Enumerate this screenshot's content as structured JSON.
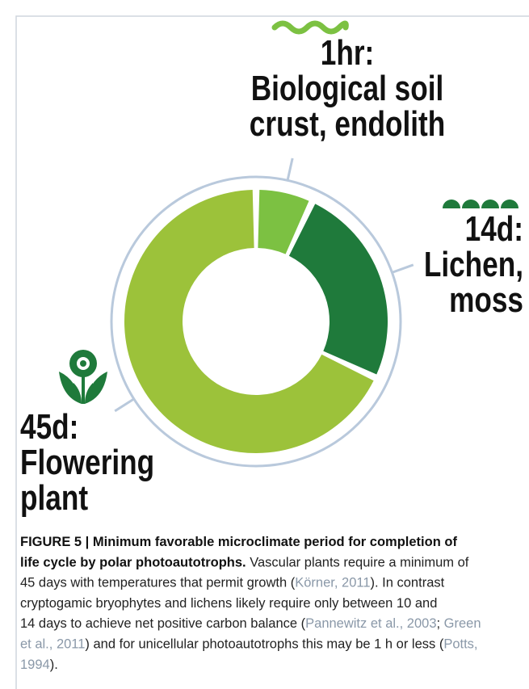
{
  "chart_data": {
    "type": "donut",
    "values": [
      7,
      25,
      68
    ],
    "colors": [
      "#7cc142",
      "#1f7a3b",
      "#9cc23a"
    ],
    "ring_color": "#b9c9dc",
    "labels": [
      {
        "period": "1hr:",
        "lines": [
          "Biological soil",
          "crust, endolith"
        ]
      },
      {
        "period": "14d:",
        "lines": [
          "Lichen,",
          "moss"
        ]
      },
      {
        "period": "45d:",
        "lines": [
          "Flowering",
          "plant"
        ]
      }
    ]
  },
  "caption": [
    [
      {
        "text": "FIGURE 5 | Minimum favorable microclimate period for completion of",
        "style": "bold"
      }
    ],
    [
      {
        "text": "life cycle by polar photoautotrophs.",
        "style": "bold"
      },
      {
        "text": " Vascular plants require a minimum of",
        "style": "normal"
      }
    ],
    [
      {
        "text": "45 days with temperatures that permit growth (",
        "style": "normal"
      },
      {
        "text": "Körner, 2011",
        "style": "cite"
      },
      {
        "text": "). In contrast",
        "style": "normal"
      }
    ],
    [
      {
        "text": "cryptogamic bryophytes and lichens likely require only between 10 and",
        "style": "normal"
      }
    ],
    [
      {
        "text": "14 days to achieve net positive carbon balance (",
        "style": "normal"
      },
      {
        "text": "Pannewitz et al., 2003",
        "style": "cite"
      },
      {
        "text": "; ",
        "style": "normal"
      },
      {
        "text": "Green",
        "style": "cite"
      }
    ],
    [
      {
        "text": "et al., 2011",
        "style": "cite"
      },
      {
        "text": ") and for unicellular photoautotrophs this may be 1 h or less (",
        "style": "normal"
      },
      {
        "text": "Potts,",
        "style": "cite"
      }
    ],
    [
      {
        "text": "1994",
        "style": "cite"
      },
      {
        "text": ").",
        "style": "normal"
      }
    ]
  ]
}
